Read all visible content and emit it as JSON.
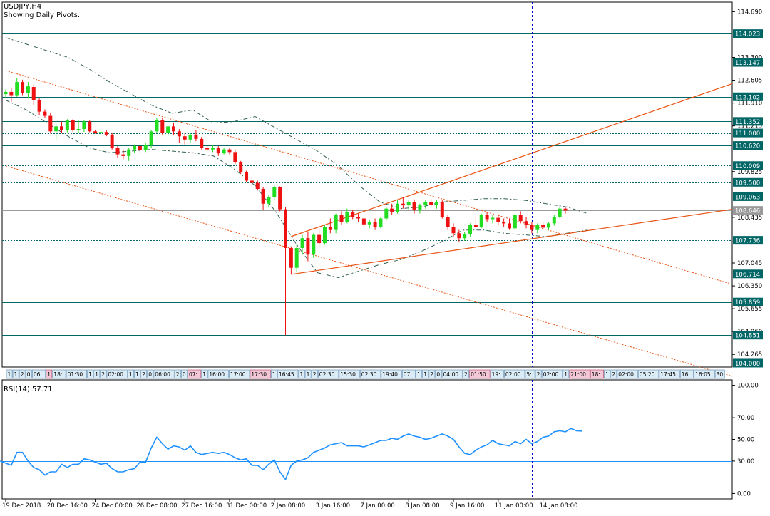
{
  "header": {
    "symbol_timeframe": "USDJPY,H4",
    "subtitle": "Showing Daily Pivots."
  },
  "colors": {
    "bull_candle": "#22dd22",
    "bear_candle": "#ee1111",
    "pivot_level": "#006666",
    "vertical_grid": "#0000cc",
    "trendline": "#e85010",
    "channel": "#555555",
    "rsi_line": "#1e90ff",
    "rsi_level": "#1e90ff",
    "price_label_bg": "#006666"
  },
  "chart_data": [
    {
      "type": "candlestick",
      "symbol": "USDJPY",
      "timeframe": "H4",
      "ylim": [
        103.88,
        114.98
      ],
      "y_ticks": [
        "114.690",
        "113.300",
        "112.605",
        "111.910",
        "111.215",
        "109.825",
        "108.435",
        "107.045",
        "106.350",
        "105.655",
        "104.960",
        "104.265"
      ],
      "pivot_levels": [
        {
          "value": 114.023,
          "label": "114.023",
          "style": "solid"
        },
        {
          "value": 113.147,
          "label": "113.147",
          "style": "solid"
        },
        {
          "value": 112.102,
          "label": "112.102",
          "style": "solid"
        },
        {
          "value": 111.352,
          "label": "111.352",
          "style": "solid"
        },
        {
          "value": 111.0,
          "label": "111.000",
          "style": "dotted"
        },
        {
          "value": 110.62,
          "label": "110.620",
          "style": "solid"
        },
        {
          "value": 110.009,
          "label": "110.009",
          "style": "dotted"
        },
        {
          "value": 109.5,
          "label": "109.500",
          "style": "dotted"
        },
        {
          "value": 109.063,
          "label": "109.063",
          "style": "solid"
        },
        {
          "value": 108.646,
          "label": "108.646",
          "style": "current"
        },
        {
          "value": 107.736,
          "label": "107.736",
          "style": "dotted"
        },
        {
          "value": 106.714,
          "label": "106.714",
          "style": "solid"
        },
        {
          "value": 105.859,
          "label": "105.859",
          "style": "solid"
        },
        {
          "value": 104.851,
          "label": "104.851",
          "style": "solid"
        },
        {
          "value": 104.0,
          "label": "104.000",
          "style": "dotted"
        }
      ],
      "x_labels": [
        "19 Dec 2018",
        "20 Dec 16:00",
        "24 Dec 00:00",
        "26 Dec 08:00",
        "27 Dec 16:00",
        "31 Dec 00:00",
        "2 Jan 08:00",
        "3 Jan 16:00",
        "7 Jan 00:00",
        "8 Jan 08:00",
        "9 Jan 16:00",
        "11 Jan 00:00",
        "14 Jan 08:00"
      ],
      "x_label_bars": [
        0,
        8,
        16,
        24,
        32,
        40,
        48,
        56,
        64,
        72,
        80,
        88,
        96
      ],
      "vertical_grid_bars": [
        16,
        40,
        64,
        94
      ],
      "candles": [
        {
          "o": 112.18,
          "h": 112.32,
          "l": 112.05,
          "c": 112.25
        },
        {
          "o": 112.25,
          "h": 112.38,
          "l": 111.95,
          "c": 112.15
        },
        {
          "o": 112.15,
          "h": 112.68,
          "l": 112.1,
          "c": 112.55
        },
        {
          "o": 112.55,
          "h": 112.62,
          "l": 112.15,
          "c": 112.22
        },
        {
          "o": 112.22,
          "h": 112.55,
          "l": 112.05,
          "c": 112.42
        },
        {
          "o": 112.4,
          "h": 112.47,
          "l": 111.85,
          "c": 112.0
        },
        {
          "o": 112.0,
          "h": 112.05,
          "l": 111.55,
          "c": 111.65
        },
        {
          "o": 111.65,
          "h": 111.72,
          "l": 111.45,
          "c": 111.52
        },
        {
          "o": 111.52,
          "h": 111.6,
          "l": 110.98,
          "c": 111.05
        },
        {
          "o": 111.05,
          "h": 111.28,
          "l": 110.8,
          "c": 111.2
        },
        {
          "o": 111.2,
          "h": 111.35,
          "l": 111.0,
          "c": 111.1
        },
        {
          "o": 111.1,
          "h": 111.42,
          "l": 111.02,
          "c": 111.38
        },
        {
          "o": 111.38,
          "h": 111.42,
          "l": 111.03,
          "c": 111.08
        },
        {
          "o": 111.08,
          "h": 111.38,
          "l": 111.01,
          "c": 111.12
        },
        {
          "o": 111.12,
          "h": 111.4,
          "l": 111.03,
          "c": 111.35
        },
        {
          "o": 111.35,
          "h": 111.38,
          "l": 111.02,
          "c": 111.05
        },
        {
          "o": 111.05,
          "h": 111.1,
          "l": 110.98,
          "c": 111.0
        },
        {
          "o": 111.0,
          "h": 111.12,
          "l": 110.95,
          "c": 111.03
        },
        {
          "o": 111.03,
          "h": 111.08,
          "l": 110.9,
          "c": 110.95
        },
        {
          "o": 110.95,
          "h": 111.0,
          "l": 110.5,
          "c": 110.55
        },
        {
          "o": 110.55,
          "h": 110.6,
          "l": 110.25,
          "c": 110.35
        },
        {
          "o": 110.35,
          "h": 110.5,
          "l": 110.2,
          "c": 110.3
        },
        {
          "o": 110.3,
          "h": 110.55,
          "l": 110.15,
          "c": 110.5
        },
        {
          "o": 110.5,
          "h": 110.65,
          "l": 110.4,
          "c": 110.6
        },
        {
          "o": 110.6,
          "h": 110.65,
          "l": 110.4,
          "c": 110.48
        },
        {
          "o": 110.48,
          "h": 110.7,
          "l": 110.42,
          "c": 110.62
        },
        {
          "o": 110.62,
          "h": 111.1,
          "l": 110.55,
          "c": 111.05
        },
        {
          "o": 111.05,
          "h": 111.45,
          "l": 111.0,
          "c": 111.4
        },
        {
          "o": 111.4,
          "h": 111.45,
          "l": 110.95,
          "c": 111.0
        },
        {
          "o": 111.0,
          "h": 111.25,
          "l": 110.9,
          "c": 111.2
        },
        {
          "o": 111.2,
          "h": 111.32,
          "l": 110.95,
          "c": 111.05
        },
        {
          "o": 111.05,
          "h": 111.12,
          "l": 110.7,
          "c": 110.9
        },
        {
          "o": 110.9,
          "h": 111.0,
          "l": 110.65,
          "c": 110.8
        },
        {
          "o": 110.8,
          "h": 111.0,
          "l": 110.7,
          "c": 110.95
        },
        {
          "o": 110.95,
          "h": 111.1,
          "l": 110.75,
          "c": 110.82
        },
        {
          "o": 110.82,
          "h": 110.88,
          "l": 110.5,
          "c": 110.55
        },
        {
          "o": 110.55,
          "h": 110.62,
          "l": 110.45,
          "c": 110.5
        },
        {
          "o": 110.5,
          "h": 110.62,
          "l": 110.42,
          "c": 110.55
        },
        {
          "o": 110.55,
          "h": 110.6,
          "l": 110.3,
          "c": 110.38
        },
        {
          "o": 110.38,
          "h": 110.55,
          "l": 110.35,
          "c": 110.5
        },
        {
          "o": 110.5,
          "h": 110.55,
          "l": 110.35,
          "c": 110.42
        },
        {
          "o": 110.42,
          "h": 110.5,
          "l": 110.05,
          "c": 110.1
        },
        {
          "o": 110.1,
          "h": 110.15,
          "l": 109.75,
          "c": 109.82
        },
        {
          "o": 109.82,
          "h": 109.85,
          "l": 109.5,
          "c": 109.55
        },
        {
          "o": 109.55,
          "h": 109.65,
          "l": 109.35,
          "c": 109.48
        },
        {
          "o": 109.48,
          "h": 109.55,
          "l": 109.25,
          "c": 109.3
        },
        {
          "o": 109.3,
          "h": 109.35,
          "l": 108.65,
          "c": 108.85
        },
        {
          "o": 108.85,
          "h": 109.1,
          "l": 108.75,
          "c": 109.05
        },
        {
          "o": 109.05,
          "h": 109.4,
          "l": 108.95,
          "c": 109.35
        },
        {
          "o": 109.35,
          "h": 109.38,
          "l": 108.62,
          "c": 108.68
        },
        {
          "o": 108.68,
          "h": 108.75,
          "l": 104.85,
          "c": 107.5
        },
        {
          "o": 107.5,
          "h": 107.55,
          "l": 106.7,
          "c": 106.9
        },
        {
          "o": 106.9,
          "h": 107.6,
          "l": 106.75,
          "c": 107.5
        },
        {
          "o": 107.5,
          "h": 107.9,
          "l": 107.3,
          "c": 107.8
        },
        {
          "o": 107.8,
          "h": 108.0,
          "l": 107.1,
          "c": 107.3
        },
        {
          "o": 107.3,
          "h": 107.95,
          "l": 107.2,
          "c": 107.9
        },
        {
          "o": 107.9,
          "h": 108.1,
          "l": 107.55,
          "c": 107.65
        },
        {
          "o": 107.65,
          "h": 108.2,
          "l": 107.6,
          "c": 108.15
        },
        {
          "o": 108.15,
          "h": 108.4,
          "l": 107.95,
          "c": 108.05
        },
        {
          "o": 108.05,
          "h": 108.55,
          "l": 107.95,
          "c": 108.5
        },
        {
          "o": 108.5,
          "h": 108.62,
          "l": 108.2,
          "c": 108.3
        },
        {
          "o": 108.3,
          "h": 108.7,
          "l": 108.25,
          "c": 108.6
        },
        {
          "o": 108.6,
          "h": 108.65,
          "l": 108.38,
          "c": 108.45
        },
        {
          "o": 108.45,
          "h": 108.55,
          "l": 108.3,
          "c": 108.4
        },
        {
          "o": 108.4,
          "h": 108.45,
          "l": 108.15,
          "c": 108.22
        },
        {
          "o": 108.22,
          "h": 108.35,
          "l": 108.1,
          "c": 108.3
        },
        {
          "o": 108.3,
          "h": 108.4,
          "l": 108.05,
          "c": 108.15
        },
        {
          "o": 108.15,
          "h": 108.45,
          "l": 108.1,
          "c": 108.4
        },
        {
          "o": 108.4,
          "h": 108.75,
          "l": 108.35,
          "c": 108.7
        },
        {
          "o": 108.7,
          "h": 108.85,
          "l": 108.5,
          "c": 108.6
        },
        {
          "o": 108.6,
          "h": 108.95,
          "l": 108.55,
          "c": 108.85
        },
        {
          "o": 108.85,
          "h": 109.05,
          "l": 108.7,
          "c": 108.8
        },
        {
          "o": 108.8,
          "h": 108.95,
          "l": 108.65,
          "c": 108.9
        },
        {
          "o": 108.9,
          "h": 108.98,
          "l": 108.55,
          "c": 108.65
        },
        {
          "o": 108.65,
          "h": 108.85,
          "l": 108.55,
          "c": 108.8
        },
        {
          "o": 108.8,
          "h": 108.95,
          "l": 108.7,
          "c": 108.9
        },
        {
          "o": 108.9,
          "h": 109.0,
          "l": 108.75,
          "c": 108.82
        },
        {
          "o": 108.82,
          "h": 108.95,
          "l": 108.7,
          "c": 108.9
        },
        {
          "o": 108.9,
          "h": 108.95,
          "l": 108.4,
          "c": 108.45
        },
        {
          "o": 108.45,
          "h": 108.5,
          "l": 108.05,
          "c": 108.15
        },
        {
          "o": 108.15,
          "h": 108.25,
          "l": 107.85,
          "c": 107.95
        },
        {
          "o": 107.95,
          "h": 108.05,
          "l": 107.7,
          "c": 107.8
        },
        {
          "o": 107.8,
          "h": 108.0,
          "l": 107.72,
          "c": 107.92
        },
        {
          "o": 107.92,
          "h": 108.25,
          "l": 107.85,
          "c": 108.2
        },
        {
          "o": 108.2,
          "h": 108.45,
          "l": 108.05,
          "c": 108.15
        },
        {
          "o": 108.15,
          "h": 108.55,
          "l": 108.1,
          "c": 108.5
        },
        {
          "o": 108.5,
          "h": 108.6,
          "l": 108.3,
          "c": 108.38
        },
        {
          "o": 108.38,
          "h": 108.5,
          "l": 108.25,
          "c": 108.42
        },
        {
          "o": 108.42,
          "h": 108.48,
          "l": 108.2,
          "c": 108.3
        },
        {
          "o": 108.3,
          "h": 108.4,
          "l": 108.15,
          "c": 108.25
        },
        {
          "o": 108.25,
          "h": 108.4,
          "l": 108.05,
          "c": 108.1
        },
        {
          "o": 108.1,
          "h": 108.55,
          "l": 108.05,
          "c": 108.5
        },
        {
          "o": 108.5,
          "h": 108.62,
          "l": 108.25,
          "c": 108.32
        },
        {
          "o": 108.32,
          "h": 108.45,
          "l": 108.1,
          "c": 108.2
        },
        {
          "o": 108.2,
          "h": 108.28,
          "l": 107.95,
          "c": 108.05
        },
        {
          "o": 108.05,
          "h": 108.25,
          "l": 107.95,
          "c": 108.2
        },
        {
          "o": 108.2,
          "h": 108.3,
          "l": 108.05,
          "c": 108.12
        },
        {
          "o": 108.12,
          "h": 108.28,
          "l": 108.05,
          "c": 108.25
        },
        {
          "o": 108.25,
          "h": 108.5,
          "l": 108.18,
          "c": 108.45
        },
        {
          "o": 108.45,
          "h": 108.75,
          "l": 108.4,
          "c": 108.7
        },
        {
          "o": 108.7,
          "h": 108.75,
          "l": 108.55,
          "c": 108.64
        }
      ],
      "channel_upper": [
        113.9,
        113.7,
        113.5,
        113.3,
        112.95,
        112.55,
        112.2,
        111.85,
        111.6,
        111.7,
        111.3,
        111.35,
        111.5,
        111.15,
        110.8,
        110.45,
        110.0,
        109.4,
        108.9,
        108.7,
        108.75,
        108.9,
        108.95,
        109.0,
        109.0,
        108.95,
        108.85,
        108.75,
        108.55
      ],
      "channel_lower": [
        112.0,
        111.7,
        111.3,
        110.9,
        110.55,
        110.4,
        110.45,
        110.5,
        110.45,
        110.4,
        110.3,
        109.9,
        109.4,
        108.6,
        107.6,
        106.75,
        106.6,
        106.8,
        107.0,
        107.15,
        107.4,
        107.7,
        108.05,
        108.05,
        107.95,
        107.9,
        107.85,
        107.95,
        108.05
      ],
      "trendlines": [
        {
          "name": "descending-1",
          "x1": 0,
          "y1": 112.9,
          "x2": 130,
          "y2": 106.4,
          "style": "dotted"
        },
        {
          "name": "descending-2",
          "x1": 0,
          "y1": 110.0,
          "x2": 130,
          "y2": 103.6,
          "style": "dotted"
        },
        {
          "name": "channel-upper",
          "x1": 51,
          "y1": 107.85,
          "x2": 130,
          "y2": 112.5,
          "style": "solid"
        },
        {
          "name": "channel-lower",
          "x1": 51,
          "y1": 106.7,
          "x2": 130,
          "y2": 108.68,
          "style": "solid"
        }
      ]
    },
    {
      "type": "line",
      "title": "RSI(14) 57.71",
      "ylim": [
        -5,
        105
      ],
      "y_ticks": [
        "100.00",
        "70.00",
        "50.00",
        "30.00",
        "0.00"
      ],
      "levels": [
        70,
        50,
        30
      ],
      "series": [
        {
          "name": "RSI(14)",
          "values": [
            30,
            28,
            26,
            38,
            38,
            30,
            24,
            22,
            17,
            20,
            20,
            27,
            24,
            27,
            27,
            32,
            31,
            29,
            27,
            28,
            23,
            20,
            20,
            22,
            23,
            29,
            29,
            42,
            52,
            46,
            41,
            44,
            43,
            40,
            44,
            38,
            36,
            37,
            38,
            37,
            38,
            36,
            33,
            31,
            32,
            26,
            26,
            22,
            27,
            31,
            20,
            13,
            26,
            30,
            31,
            33,
            38,
            40,
            42,
            45,
            46,
            47,
            44,
            44,
            44,
            43,
            45,
            47,
            49,
            49,
            51,
            50,
            53,
            55,
            53,
            52,
            50,
            51,
            53,
            55,
            53,
            50,
            43,
            37,
            36,
            40,
            43,
            45,
            49,
            46,
            45,
            44,
            48,
            46,
            50,
            46,
            48,
            52,
            53,
            57,
            58,
            57,
            60,
            58,
            57.71
          ]
        }
      ]
    }
  ],
  "event_strip": {
    "items": [
      "1",
      "1",
      "2",
      "0",
      "06:",
      "1",
      "18:",
      "01:30",
      "1",
      "1",
      "2",
      "02:00",
      "1",
      "1",
      "2",
      "0",
      "06:00",
      "2",
      "0",
      "07:",
      "1",
      "16:00",
      "17:00",
      "17:30",
      "1",
      "16:45",
      "1",
      "1",
      "2",
      "02:30",
      "15:30",
      "02:30",
      "19:40",
      "07:",
      "1",
      "1",
      "2",
      "0",
      "04:00",
      "2",
      "01:50",
      "19:",
      "02:00",
      "5:",
      "2",
      "02:00",
      "1",
      "21:00",
      "18:",
      "1",
      "2",
      "02:00",
      "05:20",
      "17:45",
      "16:",
      "16:05",
      "30"
    ],
    "highlighted": [
      5,
      19,
      23,
      40,
      47,
      48
    ]
  }
}
